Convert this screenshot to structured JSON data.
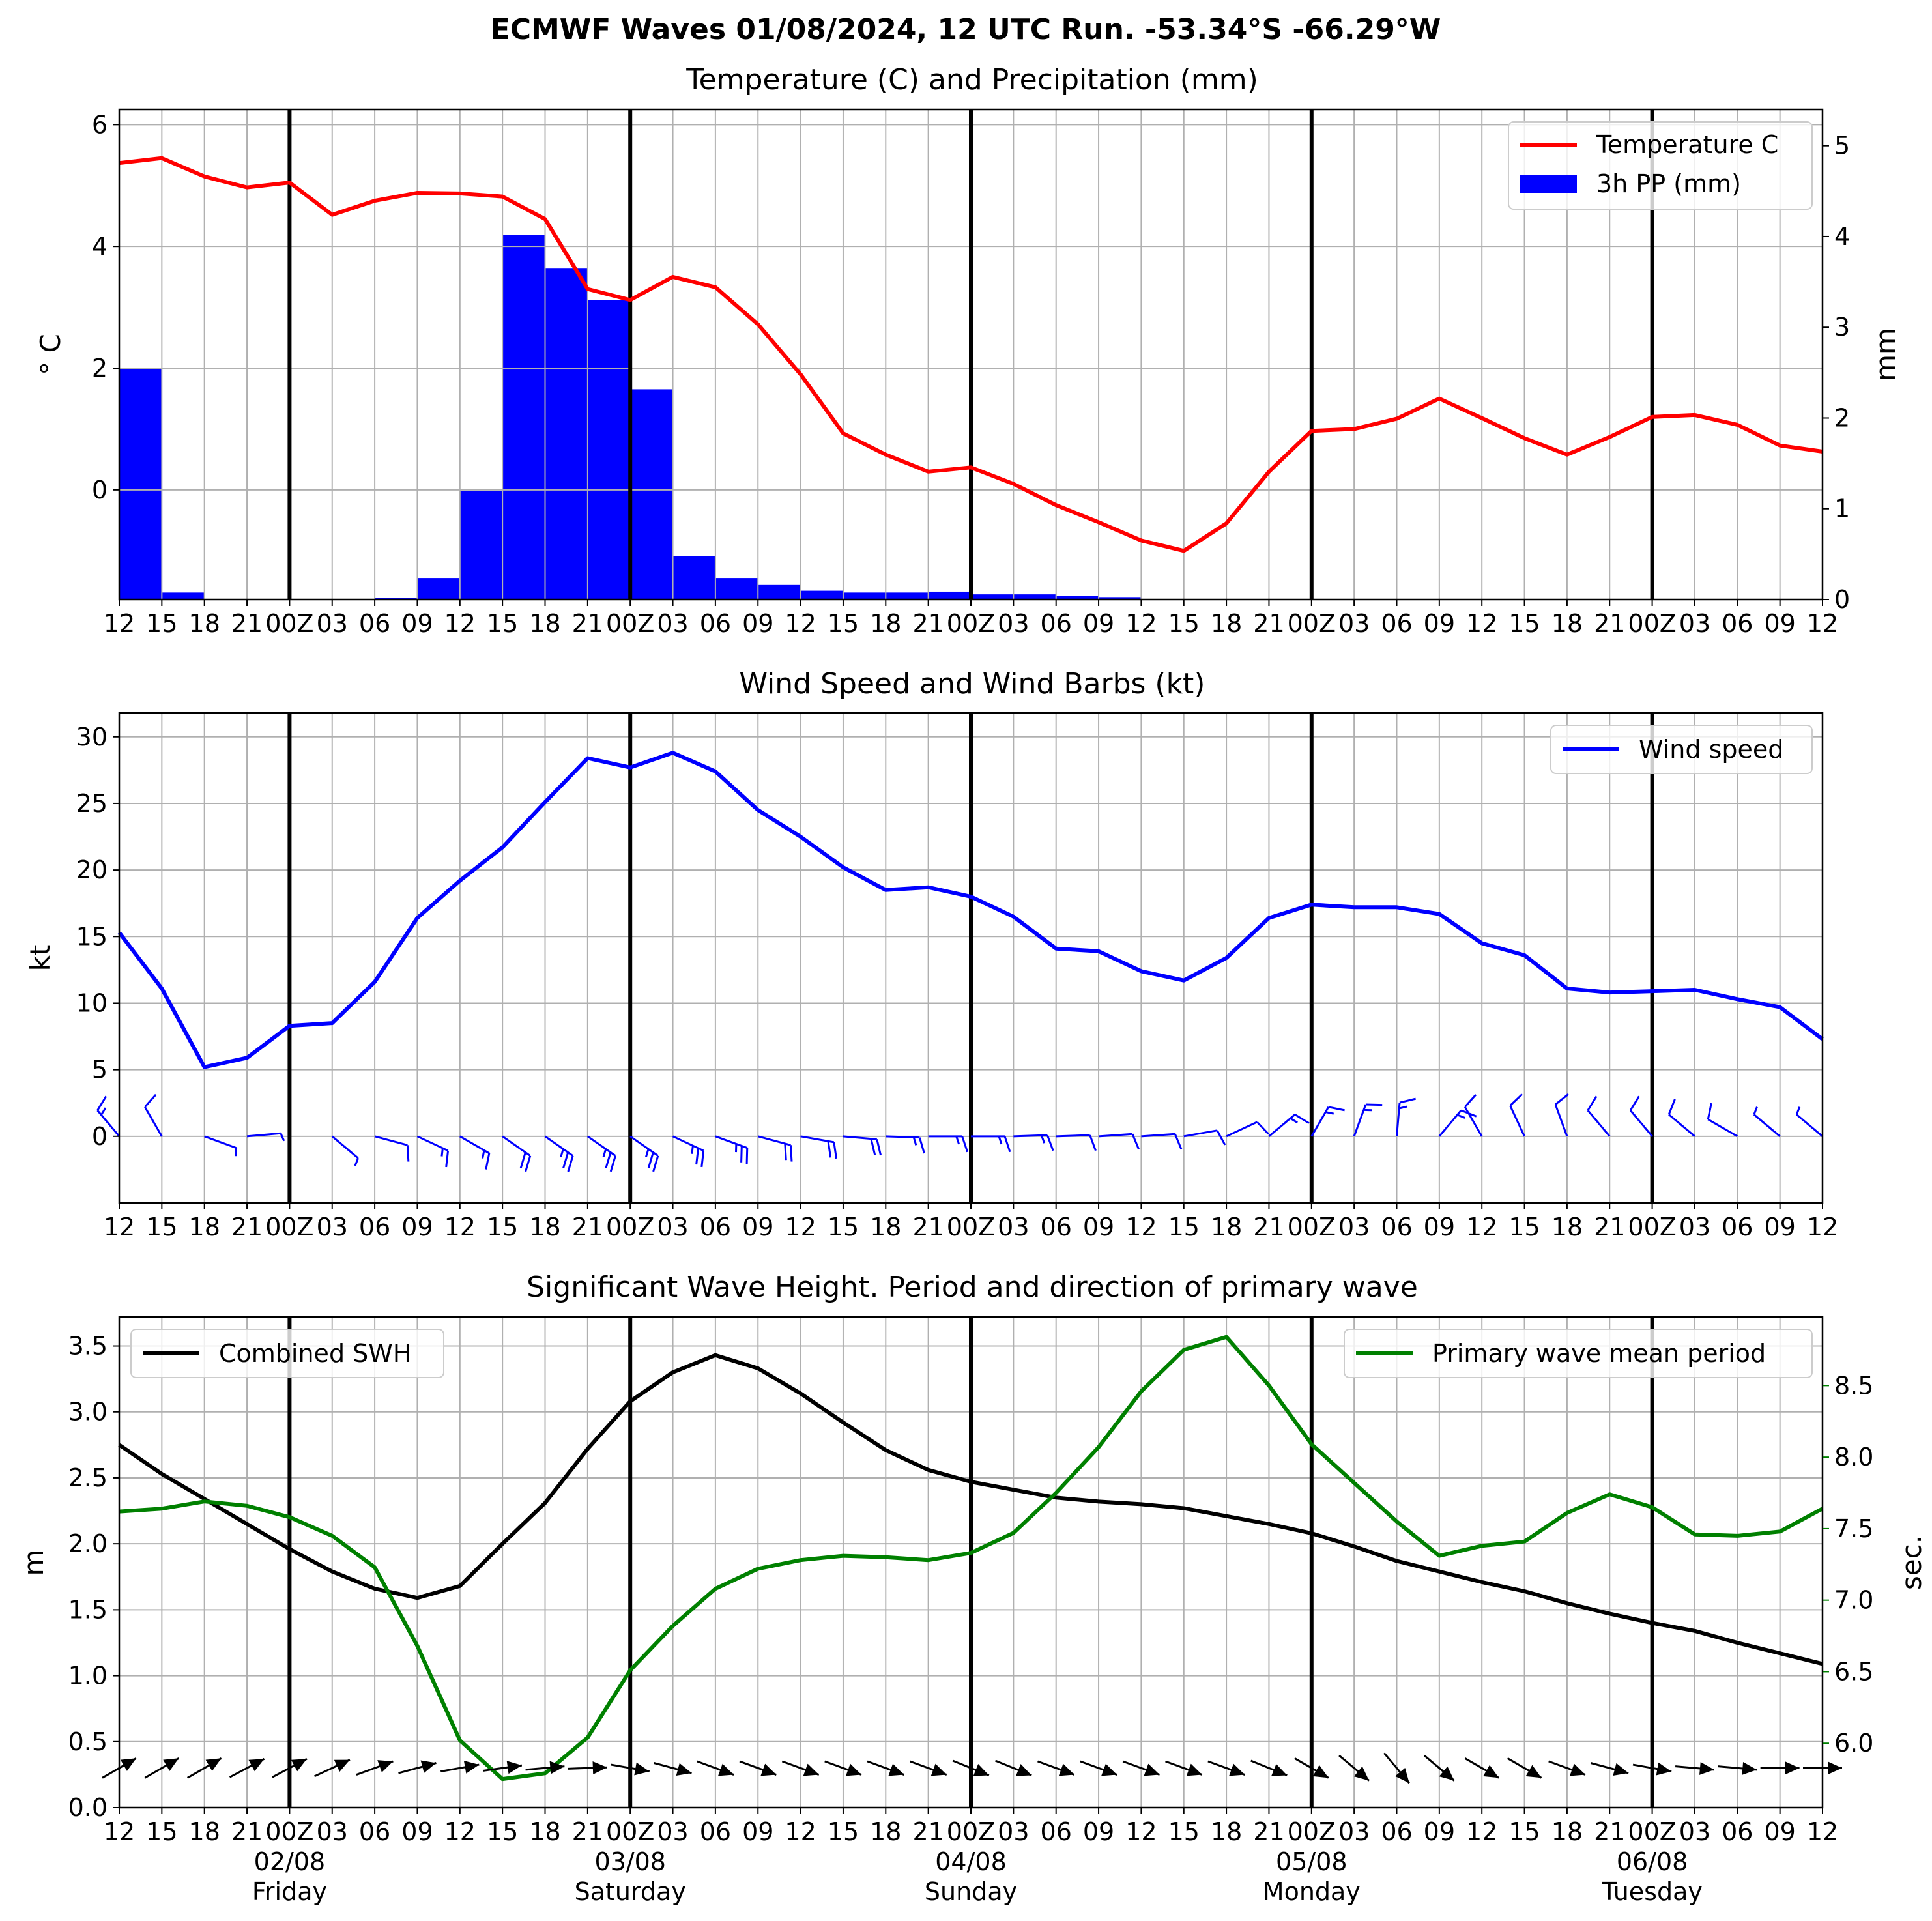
{
  "suptitle": "ECMWF Waves 01/08/2024, 12 UTC Run. -53.34°S -66.29°W",
  "colors": {
    "temperature": "#ff0000",
    "precipitation": "#0000ff",
    "wind": "#0000ff",
    "swh": "#000000",
    "period": "#008000",
    "grid": "#b0b0b0",
    "day_line": "#000000"
  },
  "x_axis": {
    "hours": [
      0,
      3,
      6,
      9,
      12,
      15,
      18,
      21,
      24,
      27,
      30,
      33,
      36,
      39,
      42,
      45,
      48,
      51,
      54,
      57,
      60,
      63,
      66,
      69,
      72,
      75,
      78,
      81,
      84,
      87,
      90,
      93,
      96,
      99,
      102,
      105,
      108,
      111,
      114,
      117,
      120
    ],
    "tick_labels": [
      "12",
      "15",
      "18",
      "21",
      "00Z",
      "03",
      "06",
      "09",
      "12",
      "15",
      "18",
      "21",
      "00Z",
      "03",
      "06",
      "09",
      "12",
      "15",
      "18",
      "21",
      "00Z",
      "03",
      "06",
      "09",
      "12",
      "15",
      "18",
      "21",
      "00Z",
      "03",
      "06",
      "09",
      "12",
      "15",
      "18",
      "21",
      "00Z",
      "03",
      "06",
      "09",
      "12"
    ],
    "day_line_hours": [
      12,
      36,
      60,
      84,
      108
    ],
    "day_labels": [
      {
        "hour": 12,
        "date": "02/08",
        "weekday": "Friday"
      },
      {
        "hour": 36,
        "date": "03/08",
        "weekday": "Saturday"
      },
      {
        "hour": 60,
        "date": "04/08",
        "weekday": "Sunday"
      },
      {
        "hour": 84,
        "date": "05/08",
        "weekday": "Monday"
      },
      {
        "hour": 108,
        "date": "06/08",
        "weekday": "Tuesday"
      }
    ]
  },
  "chart_data": [
    {
      "type": "line+bar",
      "title": "Temperature (C) and Precipitation (mm)",
      "ylabel": "$^\\circ$C",
      "ylabel_display": "° C",
      "y2label": "mm",
      "ylim": [
        -1.8,
        6.25
      ],
      "y2lim": [
        0,
        5.4
      ],
      "yticks": [
        0,
        2,
        4,
        6
      ],
      "y2ticks": [
        0,
        1,
        2,
        3,
        4,
        5
      ],
      "legend_position": "upper right",
      "series": [
        {
          "name": "Temperature C",
          "kind": "line",
          "axis": "left",
          "x": [
            0,
            3,
            6,
            9,
            12,
            15,
            18,
            21,
            24,
            27,
            30,
            33,
            36,
            39,
            42,
            45,
            48,
            51,
            54,
            57,
            60,
            63,
            66,
            69,
            72,
            75,
            78,
            81,
            84,
            87,
            90,
            93,
            96,
            99,
            102,
            105,
            108,
            111,
            114,
            117,
            120
          ],
          "values": [
            5.37,
            5.45,
            5.15,
            4.97,
            5.05,
            4.52,
            4.75,
            4.88,
            4.87,
            4.82,
            4.45,
            3.3,
            3.12,
            3.5,
            3.33,
            2.72,
            1.9,
            0.93,
            0.58,
            0.3,
            0.37,
            0.1,
            -0.25,
            -0.53,
            -0.83,
            -1.0,
            -0.55,
            0.3,
            0.97,
            1.0,
            1.17,
            1.5,
            1.18,
            0.85,
            0.58,
            0.87,
            1.2,
            1.23,
            1.07,
            0.73,
            0.63
          ]
        },
        {
          "name": "3h PP (mm)",
          "kind": "bar",
          "axis": "right",
          "x": [
            0,
            3,
            6,
            9,
            12,
            15,
            18,
            21,
            24,
            27,
            30,
            33,
            36,
            39,
            42,
            45,
            48,
            51,
            54,
            57,
            60,
            63,
            66,
            69,
            72,
            75,
            78,
            81,
            84,
            87,
            90,
            93,
            96,
            99,
            102,
            105,
            108,
            111,
            114,
            117
          ],
          "values": [
            2.55,
            0.08,
            0,
            0,
            0,
            0.01,
            0.02,
            0.24,
            1.2,
            4.02,
            3.65,
            3.3,
            2.32,
            0.48,
            0.24,
            0.17,
            0.1,
            0.08,
            0.08,
            0.09,
            0.06,
            0.06,
            0.04,
            0.03,
            0.01,
            0,
            0,
            0,
            0,
            0,
            0,
            0.01,
            0.01,
            0.01,
            0,
            0,
            0.01,
            0.01,
            0,
            0
          ]
        }
      ]
    },
    {
      "type": "line",
      "title": "Wind Speed and Wind Barbs (kt)",
      "ylabel": "kt",
      "ylim": [
        -5,
        31.8
      ],
      "yticks": [
        0,
        5,
        10,
        15,
        20,
        25,
        30
      ],
      "legend_position": "upper right",
      "series": [
        {
          "name": "Wind speed",
          "x": [
            0,
            3,
            6,
            9,
            12,
            15,
            18,
            21,
            24,
            27,
            30,
            33,
            36,
            39,
            42,
            45,
            48,
            51,
            54,
            57,
            60,
            63,
            66,
            69,
            72,
            75,
            78,
            81,
            84,
            87,
            90,
            93,
            96,
            99,
            102,
            105,
            108,
            111,
            114,
            117,
            120
          ],
          "values": [
            15.3,
            11.1,
            5.2,
            5.9,
            8.3,
            8.5,
            11.6,
            16.4,
            19.2,
            21.7,
            25.1,
            28.4,
            27.7,
            28.8,
            27.4,
            24.5,
            22.5,
            20.2,
            18.5,
            18.7,
            18.0,
            16.5,
            14.1,
            13.9,
            12.4,
            11.7,
            13.4,
            16.4,
            17.4,
            17.2,
            17.2,
            16.7,
            14.5,
            13.6,
            11.1,
            10.8,
            10.9,
            11.0,
            10.3,
            9.7,
            7.3
          ]
        }
      ],
      "barbs": {
        "x": [
          0,
          3,
          6,
          9,
          15,
          18,
          21,
          24,
          27,
          30,
          33,
          36,
          39,
          42,
          45,
          48,
          51,
          54,
          57,
          60,
          63,
          66,
          69,
          72,
          75,
          78,
          81,
          84,
          87,
          90,
          93,
          96,
          99,
          102,
          105,
          108,
          111,
          114,
          117,
          120
        ],
        "direction_deg": [
          320,
          330,
          110,
          85,
          130,
          105,
          115,
          120,
          125,
          125,
          125,
          125,
          115,
          110,
          105,
          100,
          95,
          92,
          90,
          90,
          88,
          88,
          86,
          86,
          80,
          65,
          50,
          30,
          20,
          5,
          40,
          330,
          335,
          340,
          320,
          320,
          310,
          300,
          310,
          310
        ],
        "speed_kt": [
          15,
          11,
          5,
          6,
          8.5,
          11.6,
          16.4,
          19.2,
          21.7,
          25.1,
          28.4,
          27.7,
          28.8,
          27.4,
          24.5,
          22.5,
          20.2,
          18.5,
          18.7,
          18.0,
          16.5,
          14.1,
          13.9,
          12.4,
          11.7,
          13.4,
          16.4,
          17.4,
          17.2,
          17.2,
          16.7,
          14.5,
          13.6,
          11.1,
          10.8,
          10.9,
          11.0,
          10.3,
          9.7,
          7.3
        ]
      }
    },
    {
      "type": "line",
      "title": "Significant Wave Height. Period and direction of primary wave",
      "ylabel": "m",
      "y2label": "sec.",
      "ylim": [
        0,
        3.72
      ],
      "y2lim": [
        5.55,
        8.98
      ],
      "yticks": [
        0.0,
        0.5,
        1.0,
        1.5,
        2.0,
        2.5,
        3.0,
        3.5
      ],
      "y2ticks": [
        6.0,
        6.5,
        7.0,
        7.5,
        8.0,
        8.5
      ],
      "ytick_labels": [
        "0.0",
        "0.5",
        "1.0",
        "1.5",
        "2.0",
        "2.5",
        "3.0",
        "3.5"
      ],
      "y2tick_labels": [
        "6.0",
        "6.5",
        "7.0",
        "7.5",
        "8.0",
        "8.5"
      ],
      "series": [
        {
          "name": "Combined SWH",
          "axis": "left",
          "legend_position": "upper left",
          "x": [
            0,
            3,
            6,
            9,
            12,
            15,
            18,
            21,
            24,
            27,
            30,
            33,
            36,
            39,
            42,
            45,
            48,
            51,
            54,
            57,
            60,
            63,
            66,
            69,
            72,
            75,
            78,
            81,
            84,
            87,
            90,
            93,
            96,
            99,
            102,
            105,
            108,
            111,
            114,
            117,
            120
          ],
          "values": [
            2.75,
            2.53,
            2.34,
            2.15,
            1.96,
            1.79,
            1.66,
            1.59,
            1.68,
            2.0,
            2.31,
            2.72,
            3.08,
            3.3,
            3.43,
            3.33,
            3.14,
            2.92,
            2.71,
            2.56,
            2.47,
            2.41,
            2.35,
            2.32,
            2.3,
            2.27,
            2.21,
            2.15,
            2.08,
            1.98,
            1.87,
            1.79,
            1.71,
            1.64,
            1.55,
            1.47,
            1.4,
            1.34,
            1.25,
            1.17,
            1.09
          ]
        },
        {
          "name": "Primary wave mean period",
          "axis": "right",
          "legend_position": "upper right",
          "x": [
            0,
            3,
            6,
            9,
            12,
            15,
            18,
            21,
            24,
            27,
            30,
            33,
            36,
            39,
            42,
            45,
            48,
            51,
            54,
            57,
            60,
            63,
            66,
            69,
            72,
            75,
            78,
            81,
            84,
            87,
            90,
            93,
            96,
            99,
            102,
            105,
            108,
            111,
            114,
            117,
            120
          ],
          "values": [
            7.62,
            7.64,
            7.69,
            7.66,
            7.58,
            7.45,
            7.23,
            6.68,
            6.02,
            5.75,
            5.79,
            6.04,
            6.51,
            6.82,
            7.08,
            7.22,
            7.28,
            7.31,
            7.3,
            7.28,
            7.33,
            7.47,
            7.75,
            8.07,
            8.46,
            8.75,
            8.84,
            8.5,
            8.09,
            7.82,
            7.55,
            7.31,
            7.38,
            7.41,
            7.61,
            7.74,
            7.65,
            7.46,
            7.45,
            7.48,
            7.64
          ]
        }
      ],
      "wave_direction_arrows": {
        "x": [
          0,
          3,
          6,
          9,
          12,
          15,
          18,
          21,
          24,
          27,
          30,
          33,
          36,
          39,
          42,
          45,
          48,
          51,
          54,
          57,
          60,
          63,
          66,
          69,
          72,
          75,
          78,
          81,
          84,
          87,
          90,
          93,
          96,
          99,
          102,
          105,
          108,
          111,
          114,
          117,
          120
        ],
        "direction_deg": [
          240,
          240,
          240,
          242,
          242,
          245,
          250,
          255,
          260,
          262,
          265,
          268,
          280,
          285,
          290,
          290,
          290,
          290,
          290,
          290,
          292,
          292,
          290,
          290,
          290,
          290,
          290,
          292,
          300,
          310,
          320,
          310,
          300,
          300,
          290,
          285,
          280,
          275,
          275,
          270,
          270
        ]
      }
    }
  ]
}
